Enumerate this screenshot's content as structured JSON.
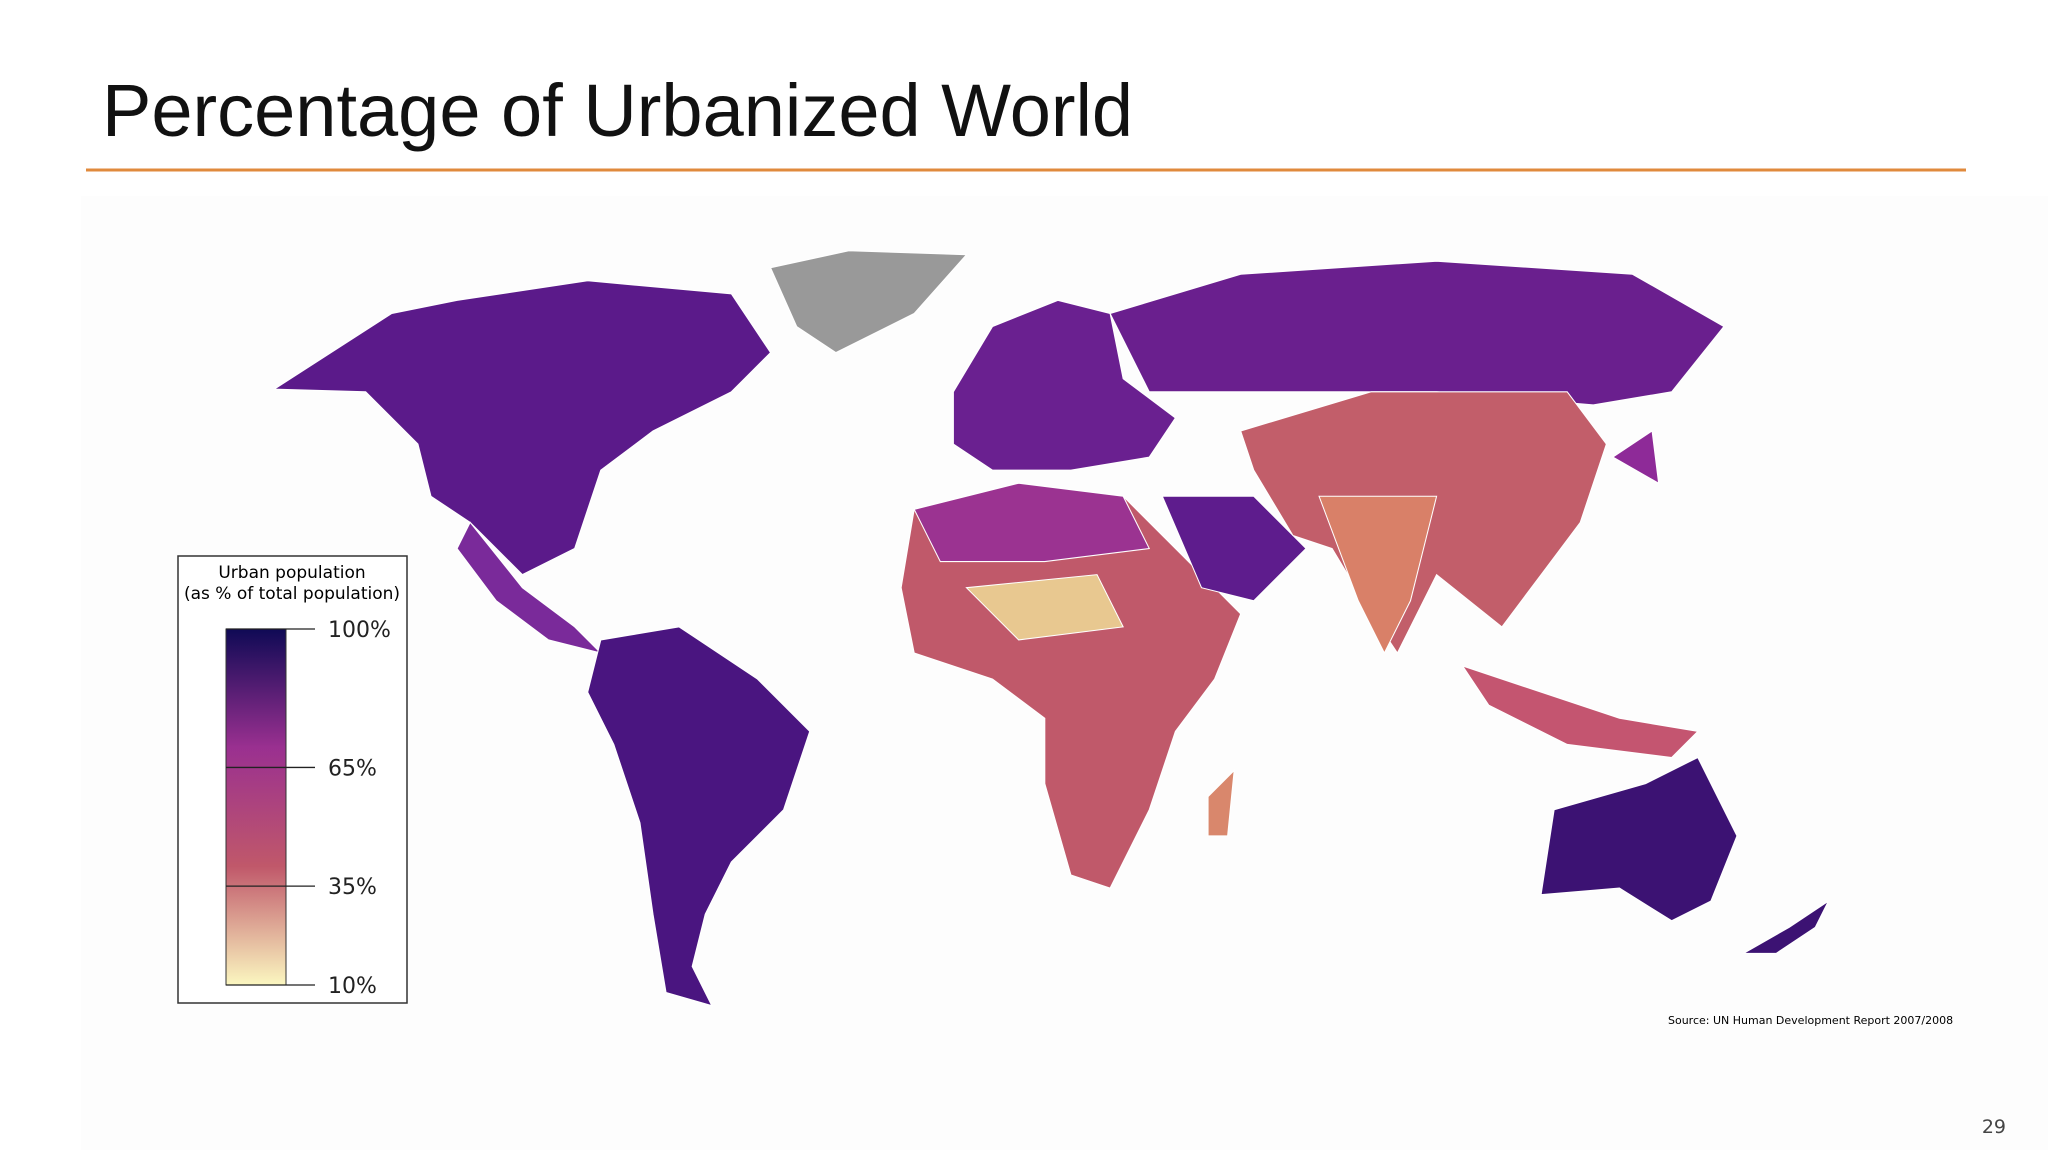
{
  "slide": {
    "title": "Percentage of Urbanized World",
    "page_number": "29"
  },
  "map": {
    "legend": {
      "title_lines": [
        "Urban population",
        "(as % of total population)"
      ],
      "scale": {
        "lim": [
          10,
          100
        ],
        "ticks": [
          {
            "value": 100,
            "label": "100%"
          },
          {
            "value": 65,
            "label": "65%"
          },
          {
            "value": 35,
            "label": "35%"
          },
          {
            "value": 10,
            "label": "10%"
          }
        ],
        "colors": [
          "#fbf7c0",
          "#c0586a",
          "#9a3090",
          "#0f0a55"
        ]
      }
    },
    "source": "Source: UN Human Development Report 2007/2008"
  }
}
